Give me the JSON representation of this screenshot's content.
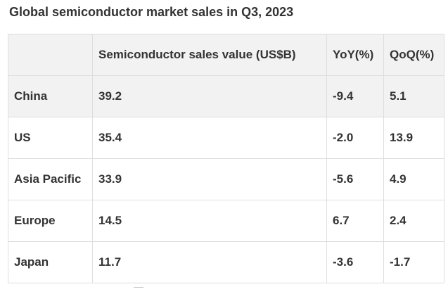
{
  "title": "Global semiconductor market sales in Q3, 2023",
  "table": {
    "headers": [
      "",
      "Semiconductor sales value (US$B)",
      "YoY(%)",
      "QoQ(%)"
    ],
    "rows": [
      {
        "region": "China",
        "sales": "39.2",
        "yoy": "-9.4",
        "qoq": "5.1"
      },
      {
        "region": "US",
        "sales": "35.4",
        "yoy": "-2.0",
        "qoq": "13.9"
      },
      {
        "region": "Asia Pacific",
        "sales": "33.9",
        "yoy": "-5.6",
        "qoq": "4.9"
      },
      {
        "region": "Europe",
        "sales": "14.5",
        "yoy": "6.7",
        "qoq": "2.4"
      },
      {
        "region": "Japan",
        "sales": "11.7",
        "yoy": "-3.6",
        "qoq": "-1.7"
      }
    ]
  }
}
